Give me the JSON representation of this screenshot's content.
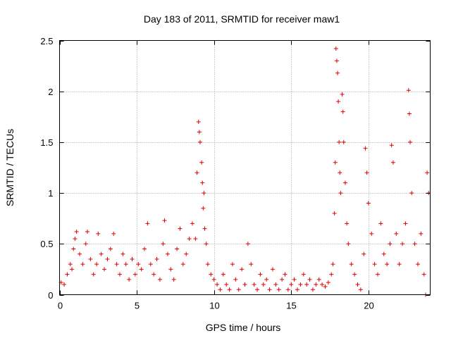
{
  "chart_data": {
    "type": "scatter",
    "title": "Day 183 of 2011, SRMTID for receiver maw1",
    "xlabel": "GPS time / hours",
    "ylabel": "SRMTID / TECUs",
    "xlim": [
      0,
      24
    ],
    "ylim": [
      0,
      2.5
    ],
    "xticks": [
      0,
      5,
      10,
      15,
      20
    ],
    "xtick_labels": [
      "0",
      "5",
      "10",
      "15",
      "20"
    ],
    "yticks": [
      0,
      0.5,
      1,
      1.5,
      2,
      2.5
    ],
    "ytick_labels": [
      "0",
      "0.5",
      "1",
      "1.5",
      "2",
      "2.5"
    ],
    "grid": true,
    "marker": "+",
    "color": "#e00000",
    "series": [
      {
        "name": "SRMTID",
        "points": [
          [
            0.1,
            0.12
          ],
          [
            0.3,
            0.1
          ],
          [
            0.5,
            0.2
          ],
          [
            0.7,
            0.3
          ],
          [
            0.8,
            0.25
          ],
          [
            0.9,
            0.45
          ],
          [
            1.0,
            0.55
          ],
          [
            1.1,
            0.62
          ],
          [
            1.3,
            0.4
          ],
          [
            1.5,
            0.3
          ],
          [
            1.7,
            0.5
          ],
          [
            1.8,
            0.62
          ],
          [
            2.0,
            0.35
          ],
          [
            2.2,
            0.2
          ],
          [
            2.4,
            0.3
          ],
          [
            2.5,
            0.6
          ],
          [
            2.7,
            0.4
          ],
          [
            2.9,
            0.25
          ],
          [
            3.1,
            0.35
          ],
          [
            3.3,
            0.45
          ],
          [
            3.5,
            0.6
          ],
          [
            3.7,
            0.3
          ],
          [
            3.9,
            0.2
          ],
          [
            4.1,
            0.4
          ],
          [
            4.3,
            0.3
          ],
          [
            4.5,
            0.15
          ],
          [
            4.7,
            0.35
          ],
          [
            4.9,
            0.2
          ],
          [
            5.1,
            0.3
          ],
          [
            5.3,
            0.25
          ],
          [
            5.5,
            0.45
          ],
          [
            5.7,
            0.7
          ],
          [
            5.9,
            0.3
          ],
          [
            6.1,
            0.2
          ],
          [
            6.3,
            0.35
          ],
          [
            6.5,
            0.15
          ],
          [
            6.7,
            0.5
          ],
          [
            6.8,
            0.73
          ],
          [
            7.0,
            0.4
          ],
          [
            7.2,
            0.25
          ],
          [
            7.4,
            0.15
          ],
          [
            7.6,
            0.45
          ],
          [
            7.8,
            0.65
          ],
          [
            8.0,
            0.3
          ],
          [
            8.2,
            0.4
          ],
          [
            8.4,
            0.55
          ],
          [
            8.6,
            0.7
          ],
          [
            8.8,
            0.55
          ],
          [
            8.9,
            1.2
          ],
          [
            9.0,
            1.7
          ],
          [
            9.05,
            1.6
          ],
          [
            9.1,
            1.5
          ],
          [
            9.2,
            1.3
          ],
          [
            9.25,
            1.1
          ],
          [
            9.3,
            0.85
          ],
          [
            9.35,
            1.0
          ],
          [
            9.4,
            0.65
          ],
          [
            9.5,
            0.5
          ],
          [
            9.6,
            0.3
          ],
          [
            9.8,
            0.2
          ],
          [
            10.0,
            0.15
          ],
          [
            10.2,
            0.1
          ],
          [
            10.4,
            0.05
          ],
          [
            10.6,
            0.2
          ],
          [
            10.8,
            0.1
          ],
          [
            11.0,
            0.05
          ],
          [
            11.2,
            0.3
          ],
          [
            11.4,
            0.15
          ],
          [
            11.6,
            0.05
          ],
          [
            11.8,
            0.25
          ],
          [
            12.0,
            0.1
          ],
          [
            12.2,
            0.5
          ],
          [
            12.4,
            0.3
          ],
          [
            12.6,
            0.1
          ],
          [
            12.8,
            0.05
          ],
          [
            13.0,
            0.2
          ],
          [
            13.2,
            0.1
          ],
          [
            13.4,
            0.15
          ],
          [
            13.6,
            0.05
          ],
          [
            13.8,
            0.25
          ],
          [
            14.0,
            0.1
          ],
          [
            14.2,
            0.05
          ],
          [
            14.4,
            0.15
          ],
          [
            14.6,
            0.2
          ],
          [
            14.8,
            0.05
          ],
          [
            15.0,
            0.1
          ],
          [
            15.2,
            0.15
          ],
          [
            15.4,
            0.05
          ],
          [
            15.6,
            0.1
          ],
          [
            15.8,
            0.2
          ],
          [
            16.0,
            0.1
          ],
          [
            16.2,
            0.15
          ],
          [
            16.4,
            0.05
          ],
          [
            16.6,
            0.1
          ],
          [
            16.8,
            0.15
          ],
          [
            17.0,
            0.1
          ],
          [
            17.2,
            0.08
          ],
          [
            17.4,
            0.12
          ],
          [
            17.6,
            0.2
          ],
          [
            17.7,
            0.3
          ],
          [
            17.8,
            0.8
          ],
          [
            17.85,
            1.3
          ],
          [
            17.9,
            2.42
          ],
          [
            17.95,
            2.3
          ],
          [
            18.0,
            2.18
          ],
          [
            18.05,
            1.9
          ],
          [
            18.1,
            1.5
          ],
          [
            18.15,
            1.2
          ],
          [
            18.2,
            1.0
          ],
          [
            18.3,
            1.97
          ],
          [
            18.35,
            1.8
          ],
          [
            18.4,
            1.5
          ],
          [
            18.5,
            1.1
          ],
          [
            18.6,
            0.7
          ],
          [
            18.7,
            0.5
          ],
          [
            18.9,
            0.3
          ],
          [
            19.1,
            0.2
          ],
          [
            19.3,
            0.1
          ],
          [
            19.5,
            0.05
          ],
          [
            19.7,
            0.4
          ],
          [
            19.8,
            1.44
          ],
          [
            19.9,
            1.2
          ],
          [
            20.0,
            0.9
          ],
          [
            20.2,
            0.6
          ],
          [
            20.4,
            0.3
          ],
          [
            20.6,
            0.2
          ],
          [
            20.8,
            0.7
          ],
          [
            21.0,
            0.4
          ],
          [
            21.2,
            0.3
          ],
          [
            21.4,
            0.5
          ],
          [
            21.5,
            1.47
          ],
          [
            21.6,
            1.3
          ],
          [
            21.8,
            0.6
          ],
          [
            22.0,
            0.3
          ],
          [
            22.2,
            0.5
          ],
          [
            22.4,
            0.7
          ],
          [
            22.6,
            2.01
          ],
          [
            22.65,
            1.78
          ],
          [
            22.7,
            1.5
          ],
          [
            22.8,
            1.0
          ],
          [
            23.0,
            0.5
          ],
          [
            23.2,
            0.3
          ],
          [
            23.4,
            0.6
          ],
          [
            23.6,
            0.2
          ],
          [
            23.7,
            0.0
          ],
          [
            23.8,
            1.2
          ],
          [
            23.9,
            1.0
          ]
        ]
      }
    ]
  }
}
